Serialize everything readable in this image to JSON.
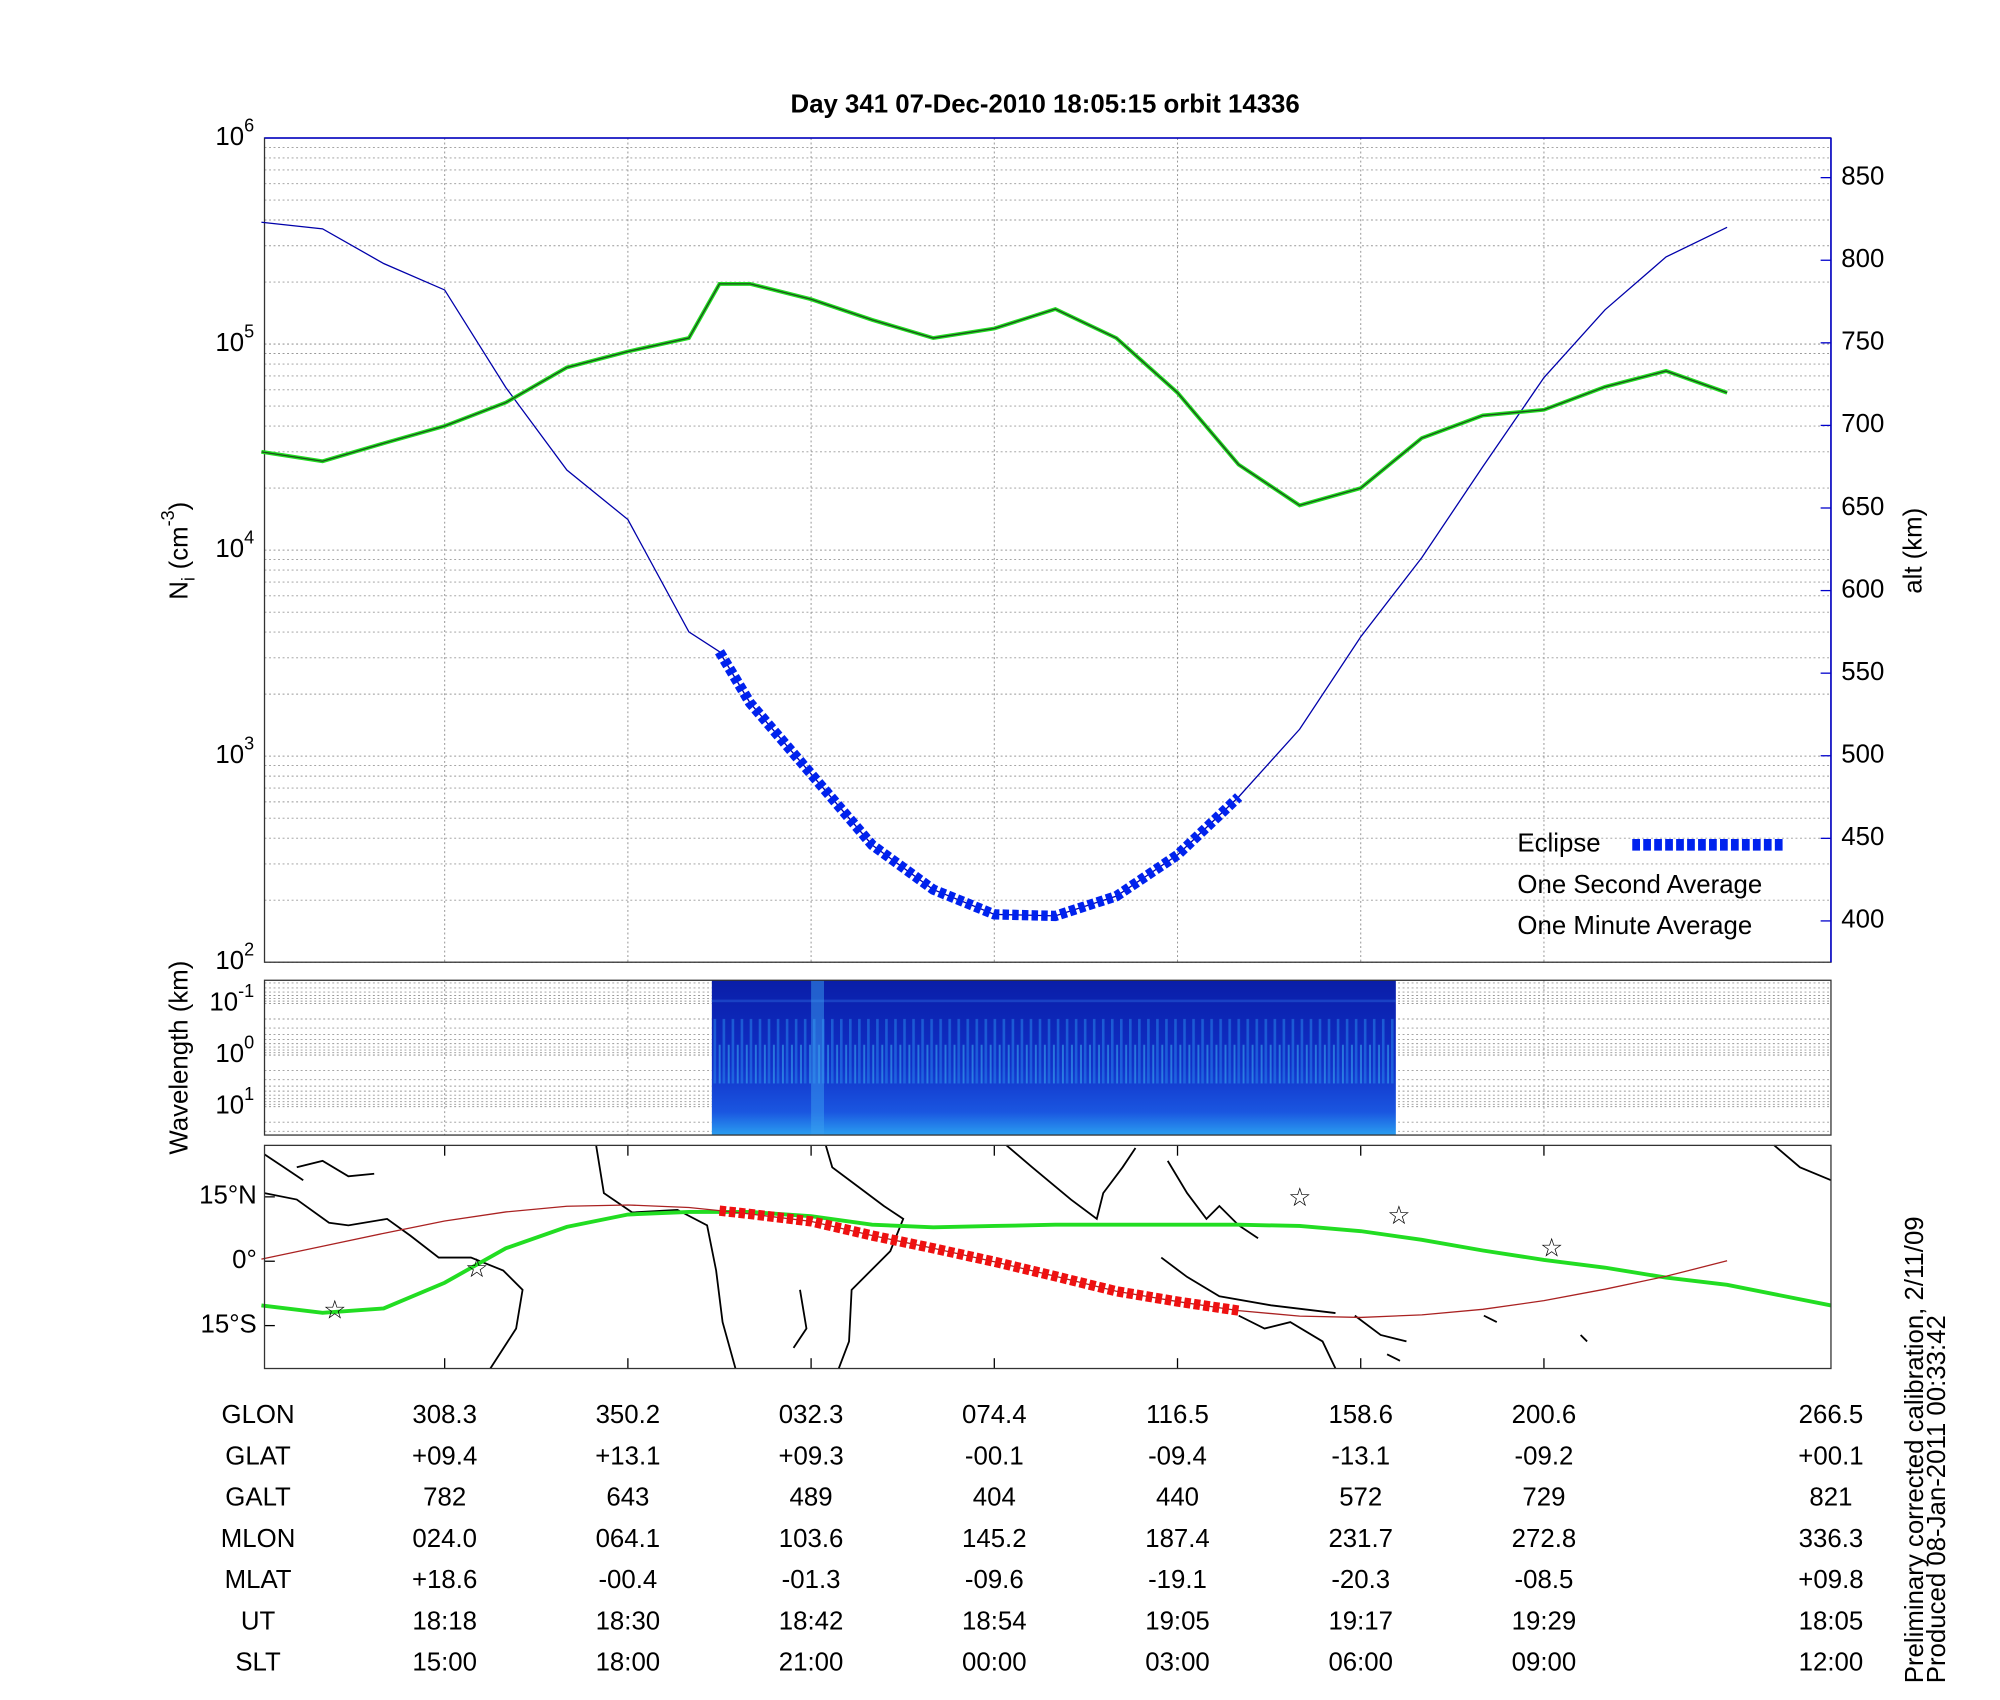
{
  "chart_data": [
    {
      "type": "line",
      "title": "Day 341  07-Dec-2010 18:05:15   orbit 14336",
      "ylabel": {
        "text": "N",
        "sub": "i",
        "unit": "(cm",
        "sup": "-3",
        "end": ")"
      },
      "y2label": "alt (km)",
      "log_y": true,
      "grid": true,
      "minor_grid": true,
      "xlim": [
        6.2,
        108.8
      ],
      "xticks": [
        18,
        30,
        42,
        54,
        66,
        78,
        90
      ],
      "ylim": [
        100,
        1000000
      ],
      "yticks": [
        {
          "value": 100,
          "base": "10",
          "exp": "2"
        },
        {
          "value": 1000,
          "base": "10",
          "exp": "3"
        },
        {
          "value": 10000,
          "base": "10",
          "exp": "4"
        },
        {
          "value": 100000,
          "base": "10",
          "exp": "5"
        },
        {
          "value": 1000000,
          "base": "10",
          "exp": "6"
        }
      ],
      "y2lim": [
        375,
        874
      ],
      "y2ticks": [
        400,
        450,
        500,
        550,
        600,
        650,
        700,
        750,
        800,
        850
      ],
      "y2color": "#0000cc",
      "legend": "lower right",
      "x": [
        6,
        10,
        14,
        18,
        22,
        26,
        30,
        34,
        36,
        38,
        42,
        46,
        50,
        54,
        58,
        62,
        66,
        70,
        74,
        78,
        82,
        86,
        90,
        94,
        98,
        102
      ],
      "series": [
        {
          "name": "Eclipse",
          "color": "#0022ee",
          "axis": "y2",
          "style": "dashed-thick",
          "values": [
            null,
            null,
            null,
            null,
            null,
            null,
            null,
            null,
            563,
            532,
            489,
            446,
            419,
            404,
            403,
            415,
            440,
            475,
            null,
            null,
            null,
            null,
            null,
            null,
            null,
            null
          ]
        },
        {
          "name": "One Second Average",
          "color": "#22dd22",
          "style": "wide",
          "values": [
            30000,
            27000,
            33000,
            40000,
            52000,
            77000,
            92000,
            107000,
            196000,
            196000,
            165000,
            131000,
            107000,
            119000,
            148000,
            107000,
            58000,
            26000,
            16500,
            20000,
            35000,
            45000,
            48000,
            62000,
            74000,
            58000
          ]
        },
        {
          "name": "One Minute Average",
          "color": "#000000",
          "line_color": "#1d4d1d",
          "style": "thin",
          "values": [
            30000,
            27000,
            33000,
            40000,
            52000,
            77000,
            92000,
            107000,
            196000,
            196000,
            165000,
            131000,
            107000,
            119000,
            148000,
            107000,
            58000,
            26000,
            16500,
            20000,
            35000,
            45000,
            48000,
            62000,
            74000,
            58000
          ]
        },
        {
          "color": "#0000aa",
          "axis": "y2",
          "style": "thin",
          "values": [
            823,
            819,
            798,
            782,
            723,
            673,
            643,
            575,
            563,
            532,
            489,
            446,
            419,
            404,
            403,
            415,
            440,
            475,
            516,
            572,
            620,
            675,
            729,
            770,
            802,
            820
          ]
        }
      ]
    },
    {
      "type": "spectrogram",
      "ylabel": "Wavelength (km)",
      "log_y": true,
      "minor_grid": true,
      "ylim": [
        35.5,
        0.0355
      ],
      "yticks": [
        {
          "value": 0.1,
          "base": "10",
          "exp": "-1"
        },
        {
          "value": 1,
          "base": "10",
          "exp": "0"
        },
        {
          "value": 10,
          "base": "10",
          "exp": "1"
        }
      ],
      "x": [
        35.5,
        80.3
      ]
    },
    {
      "type": "map",
      "ylim": [
        -25,
        27
      ],
      "yticks": [
        {
          "value": 15,
          "label": "15°N"
        },
        {
          "value": 0,
          "label": "0°"
        },
        {
          "value": -15,
          "label": "15°S"
        }
      ],
      "x": [
        6,
        10,
        14,
        18,
        22,
        26,
        30,
        34,
        36,
        38,
        42,
        46,
        50,
        54,
        58,
        62,
        66,
        70,
        74,
        78,
        82,
        86,
        90,
        94,
        98,
        102,
        108.8
      ],
      "series": [
        {
          "color": "#22dd22",
          "style": "wide",
          "values": [
            -10.3,
            -12,
            -11,
            -5,
            3,
            8,
            10.9,
            11.5,
            11.5,
            11.5,
            10.5,
            8.5,
            7.9,
            8.2,
            8.5,
            8.5,
            8.5,
            8.5,
            8.2,
            7,
            5,
            2.5,
            0.3,
            -1.5,
            -3.8,
            -5.5,
            -10.3
          ]
        },
        {
          "color": "#aa2222",
          "style": "thin",
          "values": [
            0.5,
            3.5,
            6.5,
            9.4,
            11.5,
            12.8,
            13.1,
            12.5,
            11.8,
            11,
            9.3,
            6,
            3,
            -0.1,
            -3.5,
            -7,
            -9.4,
            -11.5,
            -12.8,
            -13.1,
            -12.5,
            -11.2,
            -9.2,
            -6.5,
            -3.5,
            0.1,
            null
          ]
        },
        {
          "color": "#ee1111",
          "style": "dashed-thick",
          "values": [
            null,
            null,
            null,
            null,
            null,
            null,
            null,
            null,
            11.8,
            11,
            9.3,
            6,
            3,
            -0.1,
            -3.5,
            -7,
            -9.4,
            -11.5,
            null,
            null,
            null,
            null,
            null,
            null,
            null,
            null,
            null
          ]
        }
      ],
      "points": {
        "color": "#cc22cc",
        "x": [
          10.8,
          20.1,
          74,
          80.5,
          90.5
        ],
        "y": [
          -11.8,
          -2.1,
          14.5,
          10.3,
          2.7
        ]
      }
    }
  ],
  "table": {
    "row_labels": [
      "GLON",
      "GLAT",
      "GALT",
      "MLON",
      "MLAT",
      "UT",
      "SLT"
    ],
    "rows": [
      [
        "308.3",
        "350.2",
        "032.3",
        "074.4",
        "116.5",
        "158.6",
        "200.6",
        "266.5"
      ],
      [
        "+09.4",
        "+13.1",
        "+09.3",
        "-00.1",
        "-09.4",
        "-13.1",
        "-09.2",
        "+00.1"
      ],
      [
        "782",
        "643",
        "489",
        "404",
        "440",
        "572",
        "729",
        "821"
      ],
      [
        "024.0",
        "064.1",
        "103.6",
        "145.2",
        "187.4",
        "231.7",
        "272.8",
        "336.3"
      ],
      [
        "+18.6",
        "-00.4",
        "-01.3",
        "-09.6",
        "-19.1",
        "-20.3",
        "-08.5",
        "+09.8"
      ],
      [
        "18:18",
        "18:30",
        "18:42",
        "18:54",
        "19:05",
        "19:17",
        "19:29",
        "18:05"
      ],
      [
        "15:00",
        "18:00",
        "21:00",
        "00:00",
        "03:00",
        "06:00",
        "09:00",
        "12:00"
      ]
    ]
  },
  "notes": [
    "Preliminary corrected calibration, 2/11/09",
    "Produced 08-Jan-2011 00:33:42"
  ]
}
